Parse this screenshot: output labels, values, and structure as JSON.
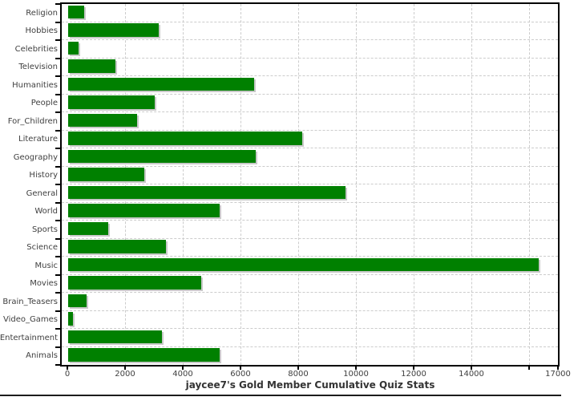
{
  "chart_data": {
    "type": "bar",
    "orientation": "horizontal",
    "title": "jaycee7's Gold Member Cumulative Quiz Stats",
    "categories": [
      "Religion",
      "Hobbies",
      "Celebrities",
      "Television",
      "Humanities",
      "People",
      "For_Children",
      "Literature",
      "Geography",
      "History",
      "General",
      "World",
      "Sports",
      "Science",
      "Music",
      "Movies",
      "Brain_Teasers",
      "Video_Games",
      "Entertainment",
      "Animals"
    ],
    "values": [
      550,
      3150,
      350,
      1650,
      6450,
      3000,
      2400,
      8100,
      6500,
      2650,
      9600,
      5250,
      1400,
      3400,
      16300,
      4600,
      650,
      180,
      3250,
      5250
    ],
    "xlabel": "",
    "ylabel": "",
    "xlim": [
      0,
      17000
    ],
    "x_ticks": [
      {
        "value": 0,
        "label": "0"
      },
      {
        "value": 2000,
        "label": "2000"
      },
      {
        "value": 4000,
        "label": "4000"
      },
      {
        "value": 6000,
        "label": "6000"
      },
      {
        "value": 8000,
        "label": "8000"
      },
      {
        "value": 10000,
        "label": "10000"
      },
      {
        "value": 12000,
        "label": "12000"
      },
      {
        "value": 14000,
        "label": "14000"
      },
      {
        "value": 16000,
        "label": ""
      },
      {
        "value": 17000,
        "label": "17000"
      }
    ],
    "grid": true,
    "legend": "none",
    "colors": {
      "bar": "#008000",
      "bar_shadow": "#c9c9c9",
      "gridline": "#cccccc",
      "axis": "#000000",
      "tick_text": "#3f3f3f",
      "title_text": "#333333",
      "background": "#ffffff"
    }
  }
}
